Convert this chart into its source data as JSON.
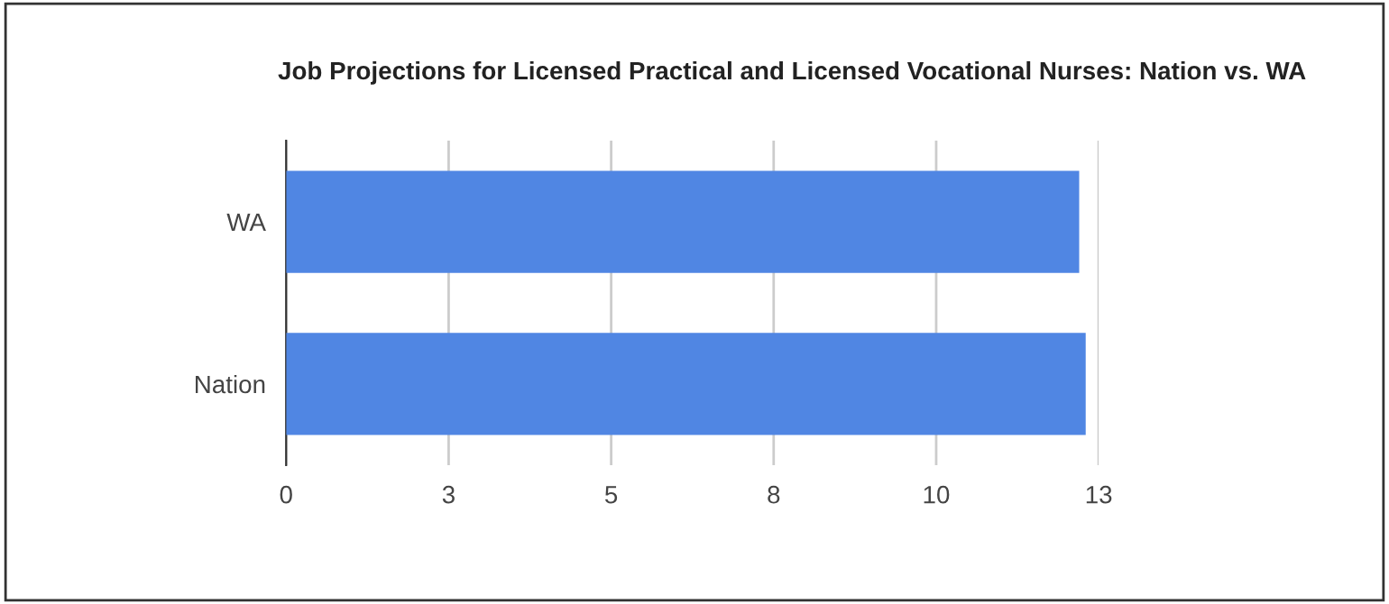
{
  "chart_data": {
    "type": "bar",
    "orientation": "horizontal",
    "title": "Job Projections for Licensed Practical and Licensed Vocational Nurses: Nation vs. WA",
    "categories": [
      "WA",
      "Nation"
    ],
    "values": [
      12.2,
      12.3
    ],
    "color": "#5086e3",
    "xlim": [
      0,
      12.5
    ],
    "xticks": [
      0,
      {
        "value": 2.5,
        "label": "3"
      },
      5,
      {
        "value": 7.5,
        "label": "8"
      },
      10,
      {
        "value": 12.5,
        "label": "13"
      }
    ],
    "grid": "x",
    "legend": false
  }
}
